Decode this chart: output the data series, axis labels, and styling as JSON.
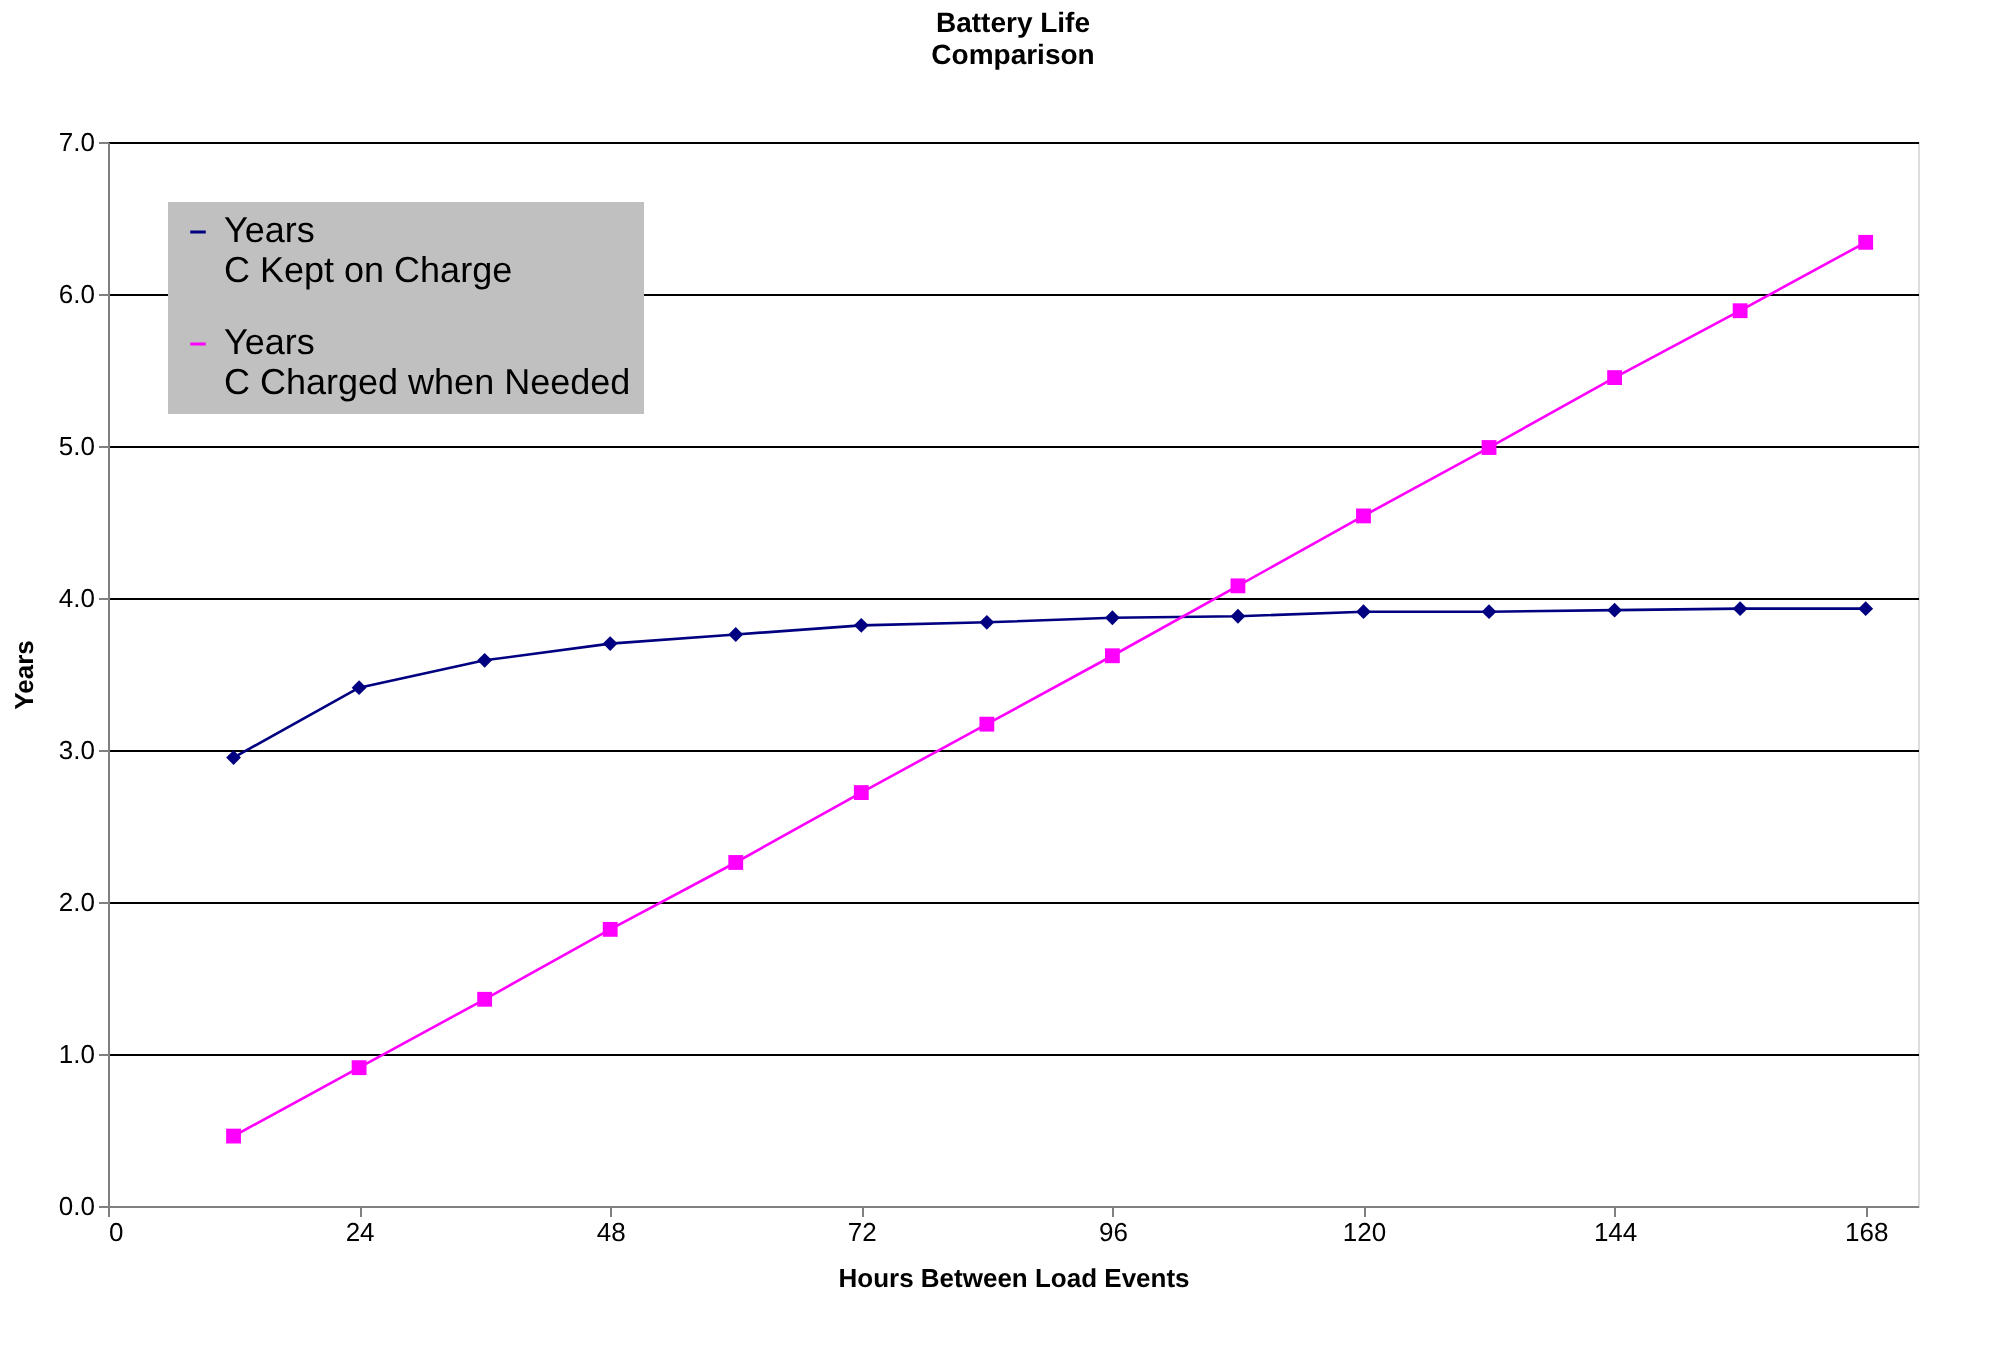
{
  "chart_data": {
    "type": "line",
    "title": "Battery Life\nComparison",
    "xlabel": "Hours Between Load Events",
    "ylabel": "Years",
    "x": [
      12,
      24,
      36,
      48,
      60,
      72,
      84,
      96,
      108,
      120,
      132,
      144,
      156,
      168
    ],
    "series": [
      {
        "name": "Years\nC Kept on Charge",
        "color": "#000080",
        "marker": "diamond",
        "values": [
          2.95,
          3.41,
          3.59,
          3.7,
          3.76,
          3.82,
          3.84,
          3.87,
          3.88,
          3.91,
          3.91,
          3.92,
          3.93,
          3.93
        ]
      },
      {
        "name": "Years\nC Charged when Needed",
        "color": "#ff00ff",
        "marker": "square",
        "values": [
          0.46,
          0.91,
          1.36,
          1.82,
          2.26,
          2.72,
          3.17,
          3.62,
          4.08,
          4.54,
          4.99,
          5.45,
          5.89,
          6.34
        ]
      }
    ],
    "xlim": [
      0,
      173
    ],
    "xticks": [
      0,
      24,
      48,
      72,
      96,
      120,
      144,
      168
    ],
    "ylim": [
      0,
      7
    ],
    "yticks": [
      {
        "value": 0,
        "label": "0.0"
      },
      {
        "value": 1,
        "label": "1.0"
      },
      {
        "value": 2,
        "label": "2.0"
      },
      {
        "value": 3,
        "label": "3.0"
      },
      {
        "value": 4,
        "label": "4.0"
      },
      {
        "value": 5,
        "label": "5.0"
      },
      {
        "value": 6,
        "label": "6.0"
      },
      {
        "value": 7,
        "label": "7.0"
      }
    ],
    "grid": "y",
    "legend": "top left"
  }
}
